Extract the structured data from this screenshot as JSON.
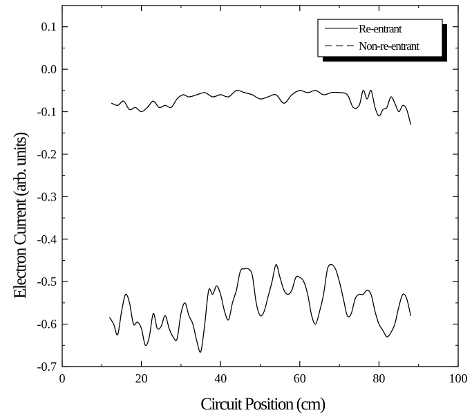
{
  "chart_data": {
    "type": "line",
    "title": "",
    "xlabel": "Circuit Position (cm)",
    "ylabel": "Electron Current (arb. units)",
    "xlim": [
      0,
      100
    ],
    "ylim": [
      -0.7,
      0.15
    ],
    "x_ticks": [
      0,
      20,
      40,
      60,
      80,
      100
    ],
    "y_ticks": [
      0.1,
      0.0,
      -0.1,
      -0.2,
      -0.3,
      -0.4,
      -0.5,
      -0.6,
      -0.7
    ],
    "x_tick_labels": [
      "0",
      "20",
      "40",
      "60",
      "80",
      "100"
    ],
    "y_tick_labels": [
      "0.1",
      "0.0",
      "-0.1",
      "-0.2",
      "-0.3",
      "-0.4",
      "-0.5",
      "-0.6",
      "-0.7"
    ],
    "grid": false,
    "legend_position": "top-right",
    "legend": [
      "Re-entrant",
      "Non-re-entrant"
    ],
    "series": [
      {
        "name": "Re-entrant",
        "style": "solid",
        "x": [
          12.5,
          14,
          15.5,
          17,
          18.5,
          20,
          21.5,
          23,
          24.5,
          26,
          27.5,
          29,
          30.5,
          32,
          34,
          36,
          38,
          40,
          42,
          44,
          46,
          48,
          50,
          52,
          54,
          56,
          58,
          60,
          62,
          64,
          66,
          68,
          70,
          72,
          73.5,
          75,
          76,
          77,
          78,
          79,
          80,
          81,
          82,
          83,
          84,
          85,
          86,
          87,
          88
        ],
        "values": [
          -0.08,
          -0.085,
          -0.075,
          -0.095,
          -0.09,
          -0.1,
          -0.09,
          -0.075,
          -0.09,
          -0.085,
          -0.09,
          -0.07,
          -0.06,
          -0.065,
          -0.06,
          -0.055,
          -0.065,
          -0.06,
          -0.065,
          -0.05,
          -0.055,
          -0.06,
          -0.07,
          -0.065,
          -0.06,
          -0.08,
          -0.06,
          -0.05,
          -0.055,
          -0.05,
          -0.06,
          -0.055,
          -0.055,
          -0.06,
          -0.09,
          -0.085,
          -0.05,
          -0.07,
          -0.05,
          -0.09,
          -0.11,
          -0.095,
          -0.09,
          -0.065,
          -0.08,
          -0.1,
          -0.085,
          -0.095,
          -0.13
        ]
      },
      {
        "name": "Non-re-entrant",
        "style": "dashed",
        "x": [
          12,
          13,
          14,
          15,
          16,
          17,
          18,
          19,
          20,
          21,
          22,
          23,
          24,
          25,
          26,
          27,
          28,
          29,
          30,
          31,
          32,
          33,
          34,
          35,
          36,
          37,
          38,
          39,
          40,
          41,
          42,
          43,
          44,
          45,
          46,
          47,
          48,
          49,
          50,
          51,
          52,
          53,
          54,
          55,
          56,
          57,
          58,
          59,
          60,
          61,
          62,
          63,
          64,
          65,
          66,
          67,
          68,
          69,
          70,
          71,
          72,
          73,
          74,
          75,
          76,
          77,
          78,
          79,
          80,
          81,
          82,
          83,
          84,
          85,
          86,
          87,
          88
        ],
        "values": [
          -0.585,
          -0.6,
          -0.625,
          -0.57,
          -0.53,
          -0.55,
          -0.6,
          -0.595,
          -0.61,
          -0.65,
          -0.63,
          -0.575,
          -0.61,
          -0.605,
          -0.58,
          -0.61,
          -0.63,
          -0.635,
          -0.575,
          -0.55,
          -0.58,
          -0.6,
          -0.64,
          -0.665,
          -0.6,
          -0.52,
          -0.53,
          -0.51,
          -0.53,
          -0.57,
          -0.59,
          -0.55,
          -0.52,
          -0.475,
          -0.47,
          -0.47,
          -0.485,
          -0.55,
          -0.58,
          -0.57,
          -0.535,
          -0.5,
          -0.46,
          -0.49,
          -0.52,
          -0.53,
          -0.52,
          -0.49,
          -0.49,
          -0.5,
          -0.53,
          -0.58,
          -0.6,
          -0.57,
          -0.53,
          -0.47,
          -0.46,
          -0.47,
          -0.5,
          -0.54,
          -0.58,
          -0.575,
          -0.54,
          -0.53,
          -0.53,
          -0.52,
          -0.53,
          -0.57,
          -0.6,
          -0.615,
          -0.63,
          -0.62,
          -0.6,
          -0.56,
          -0.53,
          -0.54,
          -0.58
        ]
      }
    ]
  }
}
